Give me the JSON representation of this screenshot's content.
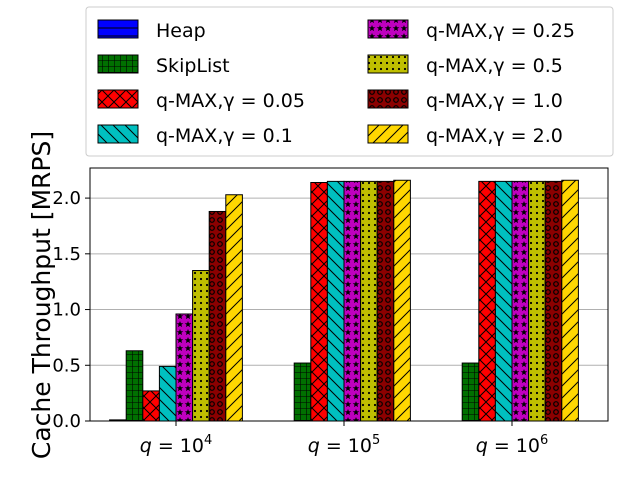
{
  "chart_data": {
    "type": "bar",
    "ylabel": "Cache Throughput [MRPS]",
    "xlabel": "",
    "ylim": [
      0,
      2.27
    ],
    "yticks": [
      "0.0",
      "0.5",
      "1.0",
      "1.5",
      "2.0"
    ],
    "grid": "y-major",
    "legend_position": "top",
    "categories": [
      {
        "label": "q = 10⁴",
        "var": "q",
        "eq": " = 10",
        "exp": "4"
      },
      {
        "label": "q = 10⁵",
        "var": "q",
        "eq": " = 10",
        "exp": "5"
      },
      {
        "label": "q = 10⁶",
        "var": "q",
        "eq": " = 10",
        "exp": "6"
      }
    ],
    "series": [
      {
        "name": "Heap",
        "color": "#0000ff",
        "pattern": "hline",
        "values": [
          0.01,
          0,
          0
        ]
      },
      {
        "name": "SkipList",
        "color": "#007000",
        "pattern": "grid",
        "values": [
          0.63,
          0.52,
          0.52
        ]
      },
      {
        "name": "q-MAX,γ = 0.05",
        "color": "#ff0000",
        "pattern": "cross",
        "values": [
          0.27,
          2.14,
          2.15
        ]
      },
      {
        "name": "q-MAX,γ = 0.1",
        "color": "#00bfbf",
        "pattern": "backslash",
        "values": [
          0.49,
          2.15,
          2.15
        ]
      },
      {
        "name": "q-MAX,γ = 0.25",
        "color": "#bf00bf",
        "pattern": "stars",
        "values": [
          0.96,
          2.15,
          2.15
        ]
      },
      {
        "name": "q-MAX,γ = 0.5",
        "color": "#bfbf00",
        "pattern": "dots",
        "values": [
          1.35,
          2.15,
          2.15
        ]
      },
      {
        "name": "q-MAX,γ = 1.0",
        "color": "#8b0000",
        "pattern": "rings",
        "values": [
          1.88,
          2.15,
          2.15
        ]
      },
      {
        "name": "q-MAX,γ = 2.0",
        "color": "#ffd700",
        "pattern": "slash",
        "values": [
          2.03,
          2.16,
          2.16
        ]
      }
    ]
  }
}
